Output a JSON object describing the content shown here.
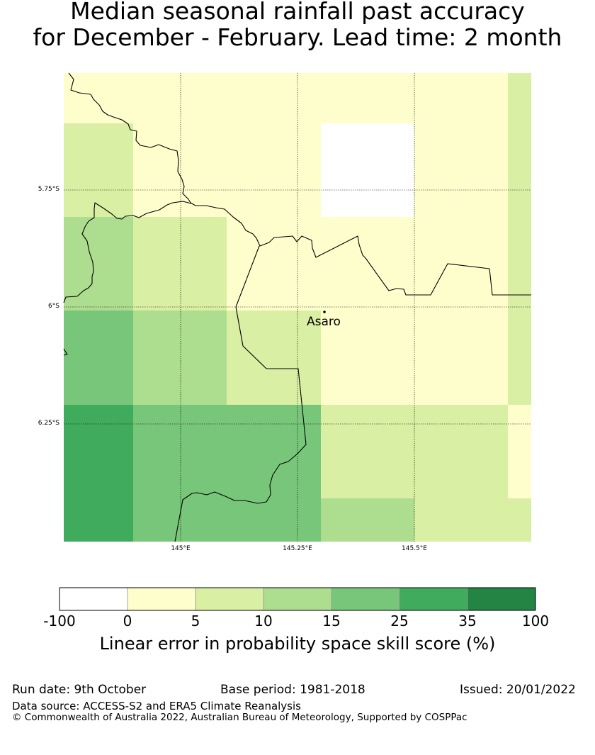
{
  "title": {
    "line1": "Median seasonal rainfall past accuracy",
    "line2": "for December - February. Lead time: 2 month"
  },
  "map": {
    "lat_labels": [
      "5.75°S",
      "6°S",
      "6.25°S"
    ],
    "lon_labels": [
      "145°E",
      "145.25°E",
      "145.5°E"
    ],
    "place": {
      "name": "Asaro",
      "marker": "dot"
    },
    "colors": {
      "c_0_5": "#fefecd",
      "c_5_10": "#d9efa3",
      "c_10_15": "#addd8e",
      "c_15_25": "#78c679",
      "c_25_35": "#41ab5d",
      "c_35_100": "#238443",
      "nodata": "#ffffff"
    }
  },
  "legend": {
    "title": "Linear error in probability space skill score (%)",
    "ticks": [
      "-100",
      "0",
      "5",
      "10",
      "15",
      "25",
      "35",
      "100"
    ],
    "colors": [
      "#ffffff",
      "#fefecd",
      "#d9efa3",
      "#addd8e",
      "#78c679",
      "#41ab5d",
      "#238443"
    ]
  },
  "footer": {
    "run_date": "Run date: 9th October",
    "base_period": "Base period: 1981-2018",
    "issued": "Issued: 20/01/2022",
    "data_source": "Data source: ACCESS-S2 and ERA5 Climate Reanalysis",
    "copyright": "© Commonwealth of Australia 2022, Australian Bureau of Meteorology, Supported by COSPPac"
  }
}
